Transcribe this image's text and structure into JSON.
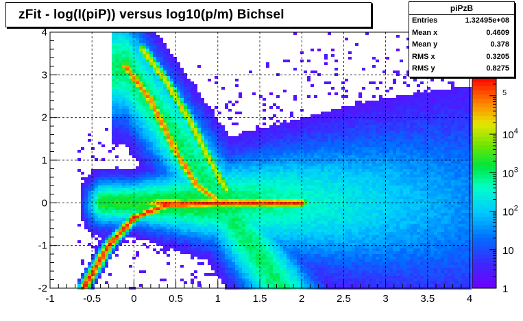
{
  "title": "zFit - log(I(piP)) versus log10(p/m) Bichsel",
  "stats": {
    "name": "piPzB",
    "rows": [
      {
        "label": "Entries",
        "value": "1.32495e+08"
      },
      {
        "label": "Mean x",
        "value": "0.4609"
      },
      {
        "label": "Mean y",
        "value": "0.378"
      },
      {
        "label": "RMS x",
        "value": "0.3205"
      },
      {
        "label": "RMS y",
        "value": "0.8275"
      }
    ]
  },
  "chart_data": {
    "type": "heatmap",
    "title": "zFit - log(I(piP)) versus log10(p/m) Bichsel",
    "x_range": [
      -1,
      4
    ],
    "y_range": [
      -2,
      4
    ],
    "x_ticks": [
      -1,
      -0.5,
      0,
      0.5,
      1,
      1.5,
      2,
      2.5,
      3,
      3.5,
      4
    ],
    "x_tick_labels": [
      "-1",
      "-0.5",
      "0",
      "0.5",
      "1",
      "1.5",
      "2",
      "2.5",
      "3",
      "3.5",
      "4"
    ],
    "y_ticks": [
      -2,
      -1,
      0,
      1,
      2,
      3,
      4
    ],
    "y_tick_labels": [
      "-2",
      "-1",
      "0",
      "1",
      "2",
      "3",
      "4"
    ],
    "grid": true,
    "z_scale": "log",
    "z_range": [
      1,
      300000
    ],
    "colorbar_ticks": [
      {
        "value": 1,
        "label": "1"
      },
      {
        "value": 10,
        "label": "10"
      },
      {
        "value": 100,
        "label": "10",
        "sup": "2"
      },
      {
        "value": 1000,
        "label": "10",
        "sup": "3"
      },
      {
        "value": 10000,
        "label": "10",
        "sup": "4"
      },
      {
        "value": 100000,
        "label": "",
        "sup": "5"
      }
    ],
    "features": [
      {
        "kind": "band",
        "description_points": [
          [
            -0.6,
            -2
          ],
          [
            -0.3,
            -1
          ],
          [
            0,
            -0.35
          ],
          [
            0.4,
            -0.05
          ],
          [
            1.0,
            0.0
          ],
          [
            2.0,
            0.0
          ]
        ],
        "peak": 200000
      },
      {
        "kind": "band",
        "description_points": [
          [
            -0.1,
            3.2
          ],
          [
            0.2,
            2.4
          ],
          [
            0.5,
            1.2
          ],
          [
            0.75,
            0.4
          ],
          [
            1.0,
            0.05
          ]
        ],
        "peak": 80000
      },
      {
        "kind": "band",
        "description_points": [
          [
            0.1,
            3.6
          ],
          [
            0.4,
            2.8
          ],
          [
            0.7,
            1.8
          ],
          [
            0.9,
            1.0
          ],
          [
            1.1,
            0.3
          ]
        ],
        "peak": 20000
      }
    ]
  }
}
